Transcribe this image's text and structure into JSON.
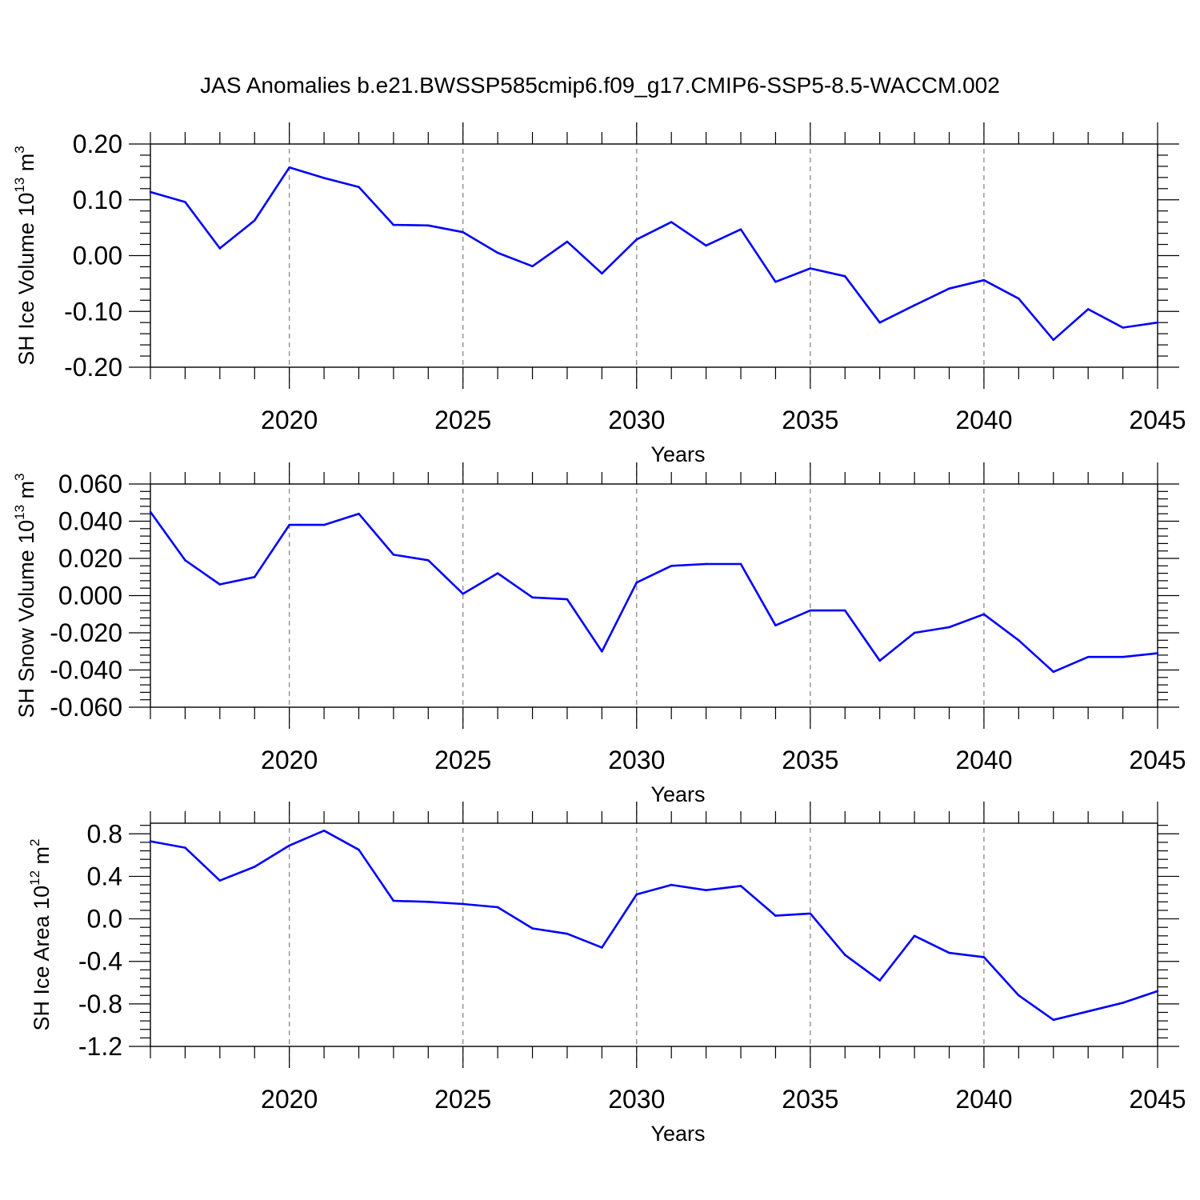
{
  "title": "JAS Anomalies b.e21.BWSSP585cmip6.f09_g17.CMIP6-SSP5-8.5-WACCM.002",
  "colors": {
    "series": "#0000ff",
    "axis": "#000000",
    "grid": "#7f7f7f"
  },
  "chart_data": [
    {
      "type": "line",
      "title": "",
      "xlabel": "Years",
      "ylabel_main": "SH Ice Volume 10",
      "ylabel_exp": "13",
      "ylabel_unit": " m",
      "ylabel_unit_exp": "3",
      "xlim": [
        2016,
        2045
      ],
      "ylim": [
        -0.2,
        0.2
      ],
      "x_ticks": [
        "2020",
        "2025",
        "2030",
        "2035",
        "2040",
        "2045"
      ],
      "y_ticks": [
        "0.20",
        "0.10",
        "0.00",
        "-0.10",
        "-0.20"
      ],
      "grid": "vertical dashed at major x ticks",
      "x": [
        2016,
        2017,
        2018,
        2019,
        2020,
        2021,
        2022,
        2023,
        2024,
        2025,
        2026,
        2027,
        2028,
        2029,
        2030,
        2031,
        2032,
        2033,
        2034,
        2035,
        2036,
        2037,
        2038,
        2039,
        2040,
        2041,
        2042,
        2043,
        2044,
        2045
      ],
      "y": [
        0.114,
        0.096,
        0.013,
        0.063,
        0.158,
        0.139,
        0.123,
        0.055,
        0.054,
        0.042,
        0.005,
        -0.019,
        0.025,
        -0.032,
        0.029,
        0.06,
        0.018,
        0.047,
        -0.047,
        -0.023,
        -0.037,
        -0.12,
        -0.089,
        -0.059,
        -0.044,
        -0.077,
        -0.151,
        -0.096,
        -0.129,
        -0.12
      ]
    },
    {
      "type": "line",
      "title": "",
      "xlabel": "Years",
      "ylabel_main": "SH Snow Volume 10",
      "ylabel_exp": "13",
      "ylabel_unit": " m",
      "ylabel_unit_exp": "3",
      "xlim": [
        2016,
        2045
      ],
      "ylim": [
        -0.06,
        0.06
      ],
      "x_ticks": [
        "2020",
        "2025",
        "2030",
        "2035",
        "2040",
        "2045"
      ],
      "y_ticks": [
        "0.060",
        "0.040",
        "0.020",
        "0.000",
        "-0.020",
        "-0.040",
        "-0.060"
      ],
      "grid": "vertical dashed at major x ticks",
      "x": [
        2016,
        2017,
        2018,
        2019,
        2020,
        2021,
        2022,
        2023,
        2024,
        2025,
        2026,
        2027,
        2028,
        2029,
        2030,
        2031,
        2032,
        2033,
        2034,
        2035,
        2036,
        2037,
        2038,
        2039,
        2040,
        2041,
        2042,
        2043,
        2044,
        2045
      ],
      "y": [
        0.045,
        0.019,
        0.006,
        0.01,
        0.038,
        0.038,
        0.044,
        0.022,
        0.019,
        0.001,
        0.012,
        -0.001,
        -0.002,
        -0.03,
        0.007,
        0.016,
        0.017,
        0.017,
        -0.016,
        -0.008,
        -0.008,
        -0.035,
        -0.02,
        -0.017,
        -0.01,
        -0.024,
        -0.041,
        -0.033,
        -0.033,
        -0.031
      ]
    },
    {
      "type": "line",
      "title": "",
      "xlabel": "Years",
      "ylabel_main": "SH Ice Area 10",
      "ylabel_exp": "12",
      "ylabel_unit": " m",
      "ylabel_unit_exp": "2",
      "xlim": [
        2016,
        2045
      ],
      "ylim": [
        -1.2,
        0.9
      ],
      "x_ticks": [
        "2020",
        "2025",
        "2030",
        "2035",
        "2040",
        "2045"
      ],
      "y_ticks": [
        "0.8",
        "0.4",
        "0.0",
        "-0.4",
        "-0.8",
        "-1.2"
      ],
      "grid": "vertical dashed at major x ticks",
      "x": [
        2016,
        2017,
        2018,
        2019,
        2020,
        2021,
        2022,
        2023,
        2024,
        2025,
        2026,
        2027,
        2028,
        2029,
        2030,
        2031,
        2032,
        2033,
        2034,
        2035,
        2036,
        2037,
        2038,
        2039,
        2040,
        2041,
        2042,
        2043,
        2044,
        2045
      ],
      "y": [
        0.73,
        0.67,
        0.36,
        0.49,
        0.69,
        0.83,
        0.65,
        0.17,
        0.16,
        0.14,
        0.11,
        -0.09,
        -0.14,
        -0.27,
        0.23,
        0.32,
        0.27,
        0.31,
        0.03,
        0.05,
        -0.34,
        -0.58,
        -0.16,
        -0.32,
        -0.36,
        -0.72,
        -0.95,
        -0.87,
        -0.79,
        -0.68
      ]
    }
  ]
}
